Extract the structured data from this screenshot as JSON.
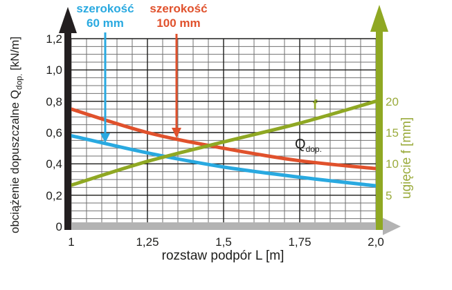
{
  "chart_data": {
    "type": "line",
    "title": "",
    "xlabel": "rozstaw podpór L [m]",
    "x_range": [
      1,
      2
    ],
    "x": [
      1,
      1.25,
      1.5,
      1.75,
      2.0
    ],
    "x_ticks": [
      "1",
      "1,25",
      "1,5",
      "1,75",
      "2,0"
    ],
    "x_major": [
      1.25,
      1.5,
      1.75
    ],
    "grid_minor_step": 0.05,
    "grid": "on",
    "y_left": {
      "label_prefix": "obciążenie dopuszczalne Q",
      "label_sub": "dop.",
      "label_suffix": " [kN/m]",
      "range": [
        0,
        1.2
      ],
      "ticks": [
        "0",
        "0,2",
        "0,4",
        "0,6",
        "0,8",
        "1,0",
        "1,2"
      ],
      "tick_values": [
        0,
        0.2,
        0.4,
        0.6,
        0.8,
        1.0,
        1.2
      ]
    },
    "y_right": {
      "label": "ugięcie f [mm]",
      "range": [
        0,
        30
      ],
      "ticks": [
        "5",
        "10",
        "15",
        "20"
      ],
      "tick_values": [
        5,
        10,
        15,
        20
      ]
    },
    "series": [
      {
        "id": "60mm",
        "name": "szerokość 60 mm",
        "axis": "left",
        "unit": "kN/m",
        "color": "#29a9e0",
        "values": [
          0.58,
          0.47,
          0.38,
          0.315,
          0.26
        ]
      },
      {
        "id": "100mm",
        "name": "szerokość 100 mm",
        "axis": "left",
        "unit": "kN/m",
        "color": "#e0512c",
        "values": [
          0.75,
          0.6,
          0.5,
          0.42,
          0.37
        ]
      },
      {
        "id": "f",
        "name": "f",
        "axis": "right",
        "unit": "mm",
        "color": "#8fa823",
        "values": [
          6.6,
          10.4,
          13.5,
          16.5,
          20.0
        ]
      }
    ],
    "annotations": {
      "f_label": "f",
      "qdop_text": "Q",
      "qdop_sub": "dop."
    }
  },
  "legend": {
    "item_60": {
      "line1": "szerokość",
      "line2": "60 mm",
      "color": "#29a9e0"
    },
    "item_100": {
      "line1": "szerokość",
      "line2": "100 mm",
      "color": "#e0512c"
    }
  },
  "colors": {
    "cyan": "#29a9e0",
    "red": "#e0512c",
    "green": "#8fa823",
    "green_text": "#9aab3c",
    "grid_minor": "#6f6f6f",
    "grid_major": "#1d1d1b",
    "axis_black": "#231f20",
    "axis_gray": "#b3b3b3",
    "text_black": "#1d1d1b",
    "background": "#ffffff"
  }
}
